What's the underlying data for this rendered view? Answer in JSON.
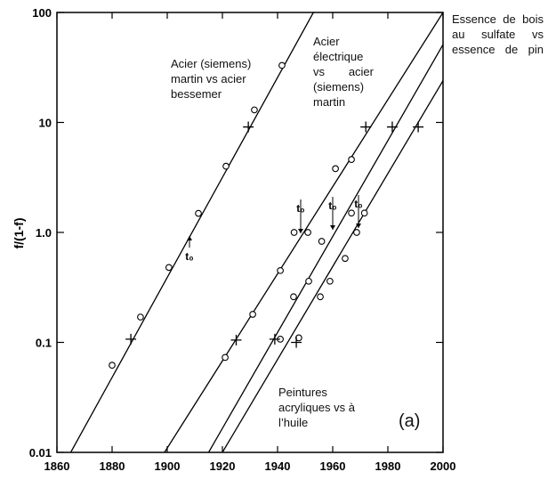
{
  "chart_data": {
    "type": "scatter",
    "ylabel": "f/(1-f)",
    "xlim": [
      1860,
      2000
    ],
    "xticks": [
      1860,
      1880,
      1900,
      1920,
      1940,
      1960,
      1980,
      2000
    ],
    "ylim": [
      0.01,
      100
    ],
    "yticks": [
      0.01,
      0.1,
      {
        "value": 1,
        "label": "1.0"
      },
      10,
      100
    ],
    "log_y": true,
    "color": "#000000",
    "lines": [
      {
        "x": [
          1865,
          1953
        ],
        "values": [
          0.01,
          100
        ]
      },
      {
        "x": [
          1899,
          2000
        ],
        "values": [
          0.01,
          100
        ]
      },
      {
        "x": [
          1915,
          2000
        ],
        "values": [
          0.01,
          51
        ]
      },
      {
        "x": [
          1920,
          2000
        ],
        "values": [
          0.01,
          24
        ]
      }
    ],
    "markers": [
      {
        "shape": "circle",
        "x": [
          1880,
          1890.3,
          1900.6,
          1911.3,
          1921.3,
          1931.6,
          1941.6,
          1921,
          1931,
          1941,
          1946,
          1951,
          1961,
          1966.8,
          1941,
          1945.8,
          1951.3,
          1956,
          1966.8,
          1947.7,
          1955.5,
          1959,
          1964.5,
          1968.7,
          1971.5
        ],
        "values": [
          0.062,
          0.17,
          0.48,
          1.49,
          4.0,
          13,
          33,
          0.073,
          0.18,
          0.45,
          1.0,
          1.0,
          3.8,
          4.6,
          0.107,
          0.26,
          0.36,
          0.83,
          1.5,
          0.11,
          0.26,
          0.36,
          0.58,
          1.0,
          1.5
        ]
      },
      {
        "shape": "plus",
        "x": [
          1886.8,
          1929.4,
          1925,
          1939,
          1946.8,
          1972,
          1981.6,
          1991
        ],
        "values": [
          0.107,
          9.1,
          0.105,
          0.107,
          0.1,
          9.1,
          9.1,
          9.1
        ]
      }
    ],
    "annotations": [
      "Acier (siemens) martin vs acier bessemer",
      "Acier électrique vs acier (siemens) martin",
      "Essence de bois au sulfate vs essence de pin",
      "Peintures acryliques vs à l’huile",
      "(a)",
      "t₀",
      "t₀",
      "t₀",
      "t₀"
    ]
  }
}
